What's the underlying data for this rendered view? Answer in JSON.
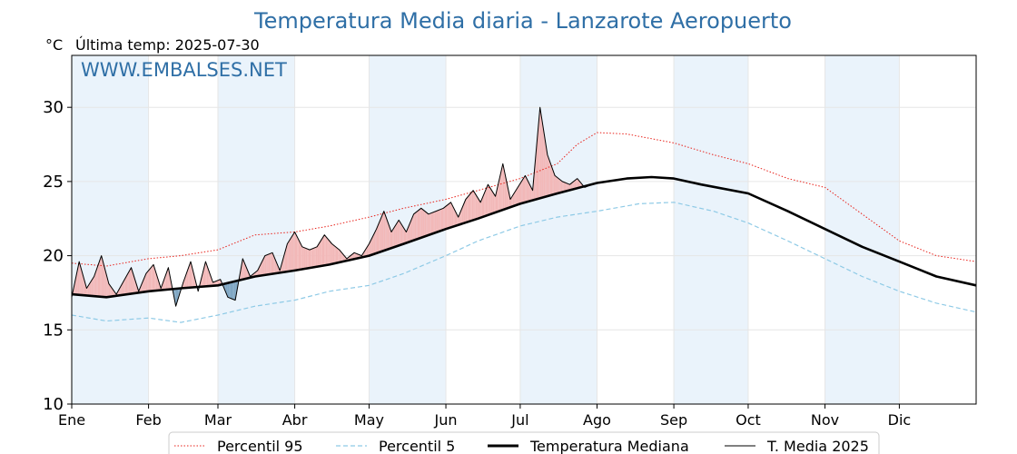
{
  "chart_data": {
    "type": "line",
    "title": "Temperatura Media diaria - Lanzarote Aeropuerto",
    "unit_label": "°C",
    "last_temp_label": "Última temp: 2025-07-30",
    "watermark": "WWW.EMBALSES.NET",
    "ylim": [
      10,
      33.5
    ],
    "y_ticks": [
      10,
      15,
      20,
      25,
      30
    ],
    "xlim": [
      1,
      366
    ],
    "x_month_labels": [
      "Ene",
      "Feb",
      "Mar",
      "Abr",
      "May",
      "Jun",
      "Jul",
      "Ago",
      "Sep",
      "Oct",
      "Nov",
      "Dic"
    ],
    "x_month_starts": [
      1,
      32,
      60,
      91,
      121,
      152,
      182,
      213,
      244,
      274,
      305,
      335
    ],
    "grid": true,
    "legend_position": "bottom-center",
    "colors": {
      "p95": "#e8221b",
      "p5": "#8ecae6",
      "median": "#000000",
      "current": "#000000",
      "fill_above": "#f2b8b8",
      "fill_below": "#7fa7c4",
      "band": "#eaf3fb",
      "title": "#2f6fa6"
    },
    "series": [
      {
        "name": "Percentil 95",
        "style": "dotted",
        "x": [
          1,
          15,
          32,
          45,
          60,
          75,
          91,
          105,
          121,
          135,
          152,
          165,
          182,
          197,
          205,
          213,
          225,
          244,
          260,
          274,
          290,
          305,
          320,
          335,
          350,
          366
        ],
        "values": [
          19.5,
          19.3,
          19.8,
          20.0,
          20.4,
          21.4,
          21.6,
          22.0,
          22.6,
          23.2,
          23.8,
          24.4,
          25.2,
          26.2,
          27.5,
          28.3,
          28.2,
          27.6,
          26.8,
          26.2,
          25.2,
          24.6,
          22.8,
          21.0,
          20.0,
          19.6
        ]
      },
      {
        "name": "Percentil 5",
        "style": "dashed",
        "x": [
          1,
          15,
          32,
          45,
          60,
          75,
          91,
          105,
          121,
          135,
          152,
          165,
          182,
          197,
          213,
          230,
          244,
          260,
          274,
          290,
          305,
          320,
          335,
          350,
          366
        ],
        "values": [
          16.0,
          15.6,
          15.8,
          15.5,
          16.0,
          16.6,
          17.0,
          17.6,
          18.0,
          18.8,
          20.0,
          21.0,
          22.0,
          22.6,
          23.0,
          23.5,
          23.6,
          23.0,
          22.2,
          21.0,
          19.8,
          18.6,
          17.6,
          16.8,
          16.2
        ]
      },
      {
        "name": "Temperatura Mediana",
        "style": "solid-thick",
        "x": [
          1,
          15,
          32,
          45,
          60,
          75,
          91,
          105,
          121,
          135,
          152,
          165,
          182,
          197,
          213,
          225,
          235,
          244,
          255,
          274,
          290,
          305,
          320,
          335,
          350,
          366
        ],
        "values": [
          17.4,
          17.2,
          17.6,
          17.8,
          18.0,
          18.6,
          19.0,
          19.4,
          20.0,
          20.8,
          21.8,
          22.5,
          23.5,
          24.2,
          24.9,
          25.2,
          25.3,
          25.2,
          24.8,
          24.2,
          23.0,
          21.8,
          20.6,
          19.6,
          18.6,
          18.0
        ]
      },
      {
        "name": "T. Media 2025",
        "style": "solid-thin",
        "x": [
          1,
          4,
          7,
          10,
          13,
          16,
          19,
          22,
          25,
          28,
          31,
          34,
          37,
          40,
          43,
          46,
          49,
          52,
          55,
          58,
          61,
          64,
          67,
          70,
          73,
          76,
          79,
          82,
          85,
          88,
          91,
          94,
          97,
          100,
          103,
          106,
          109,
          112,
          115,
          118,
          121,
          124,
          127,
          130,
          133,
          136,
          139,
          142,
          145,
          148,
          151,
          154,
          157,
          160,
          163,
          166,
          169,
          172,
          175,
          178,
          181,
          184,
          187,
          190,
          193,
          196,
          199,
          202,
          205,
          208,
          211
        ],
        "values": [
          17.2,
          19.6,
          17.8,
          18.6,
          20.0,
          18.1,
          17.4,
          18.3,
          19.2,
          17.6,
          18.8,
          19.4,
          17.8,
          19.2,
          16.6,
          18.2,
          19.6,
          17.6,
          19.6,
          18.2,
          18.4,
          17.2,
          17.0,
          19.8,
          18.6,
          19.0,
          20.0,
          20.2,
          19.0,
          20.8,
          21.6,
          20.6,
          20.4,
          20.6,
          21.4,
          20.8,
          20.4,
          19.8,
          20.2,
          20.0,
          20.8,
          21.8,
          23.0,
          21.6,
          22.4,
          21.6,
          22.8,
          23.2,
          22.8,
          23.0,
          23.2,
          23.6,
          22.6,
          23.8,
          24.4,
          23.6,
          24.8,
          24.0,
          26.2,
          23.8,
          24.6,
          25.4,
          24.4,
          30.0,
          26.8,
          25.4,
          25.0,
          24.8,
          25.2,
          24.6,
          24.8
        ]
      }
    ]
  },
  "legend": [
    {
      "label": "Percentil 95",
      "style": "dotted"
    },
    {
      "label": "Percentil 5",
      "style": "dashed"
    },
    {
      "label": "Temperatura Mediana",
      "style": "solid-thick"
    },
    {
      "label": "T. Media 2025",
      "style": "solid-thin"
    }
  ]
}
